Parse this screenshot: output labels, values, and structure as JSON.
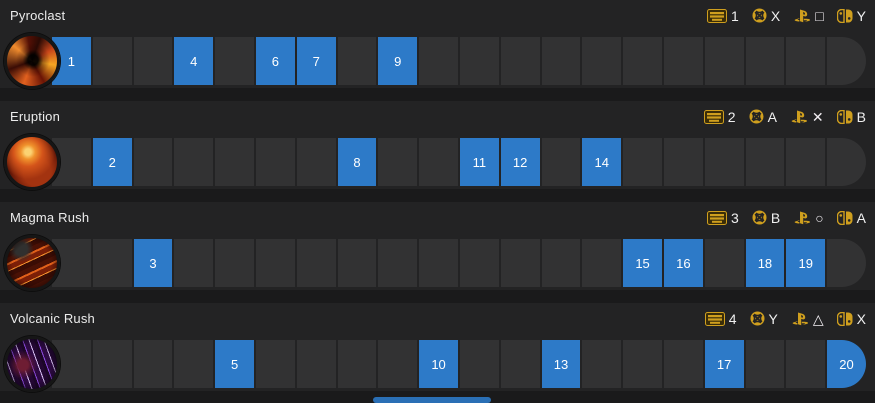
{
  "colors": {
    "accent_blue": "#2d7ac8",
    "binding_gold": "#cf9f1e",
    "row_background": "#232324",
    "cell_background": "#323233",
    "page_background": "#1a1a1b",
    "text": "#ececec"
  },
  "track": {
    "total_cells": 20
  },
  "icons": {
    "keyboard": "keyboard-icon",
    "xbox": "xbox-icon",
    "playstation": "playstation-icon",
    "switch": "switch-joycon-icon"
  },
  "rows": [
    {
      "name": "Pyroclast",
      "icon_name": "pyroclast-ability-icon",
      "kbd_label": "1",
      "xbox_label": "X",
      "ps_symbol": "□",
      "switch_label": "Y",
      "active_cells": [
        1,
        4,
        6,
        7,
        9
      ]
    },
    {
      "name": "Eruption",
      "icon_name": "eruption-ability-icon",
      "kbd_label": "2",
      "xbox_label": "A",
      "ps_symbol": "✕",
      "switch_label": "B",
      "active_cells": [
        2,
        8,
        11,
        12,
        14
      ]
    },
    {
      "name": "Magma Rush",
      "icon_name": "magma-rush-ability-icon",
      "kbd_label": "3",
      "xbox_label": "B",
      "ps_symbol": "○",
      "switch_label": "A",
      "active_cells": [
        3,
        15,
        16,
        18,
        19
      ]
    },
    {
      "name": "Volcanic Rush",
      "icon_name": "volcanic-rush-ability-icon",
      "kbd_label": "4",
      "xbox_label": "Y",
      "ps_symbol": "△",
      "switch_label": "X",
      "active_cells": [
        5,
        10,
        13,
        17,
        20
      ]
    }
  ],
  "scrollbar": {
    "visible": true
  }
}
